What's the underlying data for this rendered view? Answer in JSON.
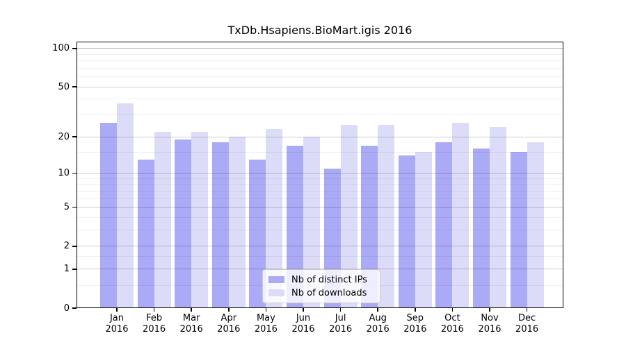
{
  "chart_data": {
    "type": "bar",
    "title": "TxDb.Hsapiens.BioMart.igis 2016",
    "categories": [
      "Jan",
      "Feb",
      "Mar",
      "Apr",
      "May",
      "Jun",
      "Jul",
      "Aug",
      "Sep",
      "Oct",
      "Nov",
      "Dec"
    ],
    "year_label": "2016",
    "series": [
      {
        "name": "Nb of distinct IPs",
        "color": "#aaaaf7",
        "values": [
          26,
          13,
          19,
          18,
          13,
          17,
          11,
          17,
          14,
          18,
          16,
          15
        ]
      },
      {
        "name": "Nb of downloads",
        "color": "#dcdcf9",
        "values": [
          37,
          22,
          22,
          20,
          23,
          20,
          25,
          25,
          15,
          26,
          24,
          18
        ]
      }
    ],
    "yaxis": {
      "scale": "log10(1+y)",
      "ticks": [
        0,
        1,
        2,
        5,
        10,
        20,
        50,
        100
      ],
      "minor_gridlines": [
        0.5,
        1.5,
        3,
        4,
        6,
        7,
        8,
        9,
        15,
        30,
        40,
        60,
        70,
        80,
        90
      ],
      "range": [
        0,
        113
      ]
    },
    "grid": "on",
    "legend_position": "bottom-center",
    "colors": {
      "major_gridline": "rgba(0,0,0,0.20)",
      "top_gridline": "rgba(0,0,0,0.30)",
      "minor_gridline": "rgba(0,0,0,0.06)",
      "spine": "#000000",
      "background": "#ffffff"
    }
  }
}
